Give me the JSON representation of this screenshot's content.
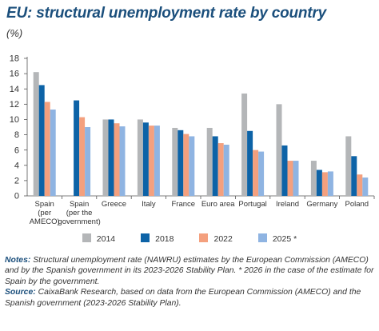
{
  "chart_data": {
    "type": "bar",
    "title": "EU: structural unemployment rate by country",
    "subtitle": "(%)",
    "categories": [
      [
        "Spain",
        "(per",
        "AMECO)"
      ],
      [
        "Spain",
        "(per the",
        "government)"
      ],
      [
        "Greece"
      ],
      [
        "Italy"
      ],
      [
        "France"
      ],
      [
        "Euro area"
      ],
      [
        "Portugal"
      ],
      [
        "Ireland"
      ],
      [
        "Germany"
      ],
      [
        "Poland"
      ]
    ],
    "series": [
      {
        "name": "2014",
        "color": "#b4b6b8",
        "values": [
          16.2,
          null,
          10.0,
          10.0,
          8.9,
          8.9,
          13.4,
          12.0,
          4.6,
          7.8
        ]
      },
      {
        "name": "2018",
        "color": "#0d63a7",
        "values": [
          14.5,
          12.5,
          10.0,
          9.6,
          8.6,
          7.8,
          8.5,
          6.6,
          3.4,
          5.2
        ]
      },
      {
        "name": "2022",
        "color": "#f4a07e",
        "values": [
          12.3,
          10.3,
          9.5,
          9.2,
          8.1,
          6.9,
          6.0,
          4.6,
          3.1,
          2.8
        ]
      },
      {
        "name": "2025 *",
        "color": "#8fb4e2",
        "values": [
          11.3,
          9.0,
          9.1,
          9.2,
          7.8,
          6.7,
          5.8,
          4.6,
          3.2,
          2.4
        ]
      }
    ],
    "ylim": [
      0,
      18
    ],
    "yticks": [
      0,
      2,
      4,
      6,
      8,
      10,
      12,
      14,
      16,
      18
    ],
    "grid": false,
    "legend_position": "bottom"
  },
  "notes": {
    "notes_label": "Notes:",
    "notes_text": " Structural unemployment rate (NAWRU) estimates by the European Commission (AMECO) and by the Spanish government in its 2023-2026 Stability Plan. * 2026 in the case of the estimate for Spain by the government.",
    "source_label": "Source:",
    "source_text": " CaixaBank Research, based on data from the European Commission (AMECO) and the Spanish government (2023-2026 Stability Plan)."
  }
}
